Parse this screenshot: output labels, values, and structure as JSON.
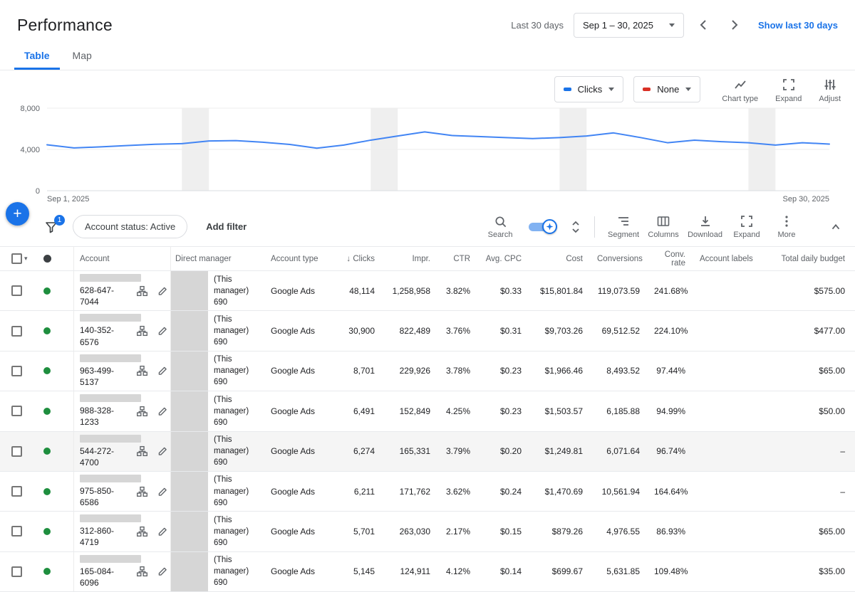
{
  "header": {
    "title": "Performance",
    "date_preset_label": "Last 30 days",
    "date_range": "Sep 1 – 30, 2025",
    "show_link": "Show last 30 days"
  },
  "tabs": [
    {
      "label": "Table"
    },
    {
      "label": "Map"
    }
  ],
  "chart_controls": {
    "metric_primary": {
      "label": "Clicks",
      "color": "#1a73e8"
    },
    "metric_secondary": {
      "label": "None",
      "color": "#d93025"
    },
    "chart_type_label": "Chart type",
    "expand_label": "Expand",
    "adjust_label": "Adjust"
  },
  "chart_data": {
    "type": "line",
    "title": "",
    "x_count": 30,
    "x_labels_visible": [
      "Sep 1, 2025",
      "Sep 30, 2025"
    ],
    "ylim": [
      0,
      8000
    ],
    "yticks": [
      0,
      4000,
      8000
    ],
    "ytick_labels": [
      "0",
      "4,000",
      "8,000"
    ],
    "grid": true,
    "legend": "none",
    "band_color": "#efefef",
    "weekend_bands": [
      [
        6,
        7
      ],
      [
        13,
        14
      ],
      [
        20,
        21
      ],
      [
        27,
        28
      ]
    ],
    "series": [
      {
        "name": "Clicks",
        "color": "#4285f4",
        "values": [
          4450,
          4150,
          4250,
          4380,
          4500,
          4560,
          4820,
          4850,
          4700,
          4480,
          4120,
          4420,
          4900,
          5300,
          5700,
          5350,
          5250,
          5150,
          5050,
          5150,
          5300,
          5600,
          5150,
          4650,
          4900,
          4750,
          4650,
          4420,
          4650,
          4520
        ]
      }
    ]
  },
  "fab": {
    "plus": "+"
  },
  "toolbar": {
    "filter_badge": "1",
    "filter_chip": "Account status: Active",
    "add_filter_label": "Add filter",
    "search_label": "Search",
    "segment_label": "Segment",
    "columns_label": "Columns",
    "download_label": "Download",
    "expand_label": "Expand",
    "more_label": "More"
  },
  "table": {
    "select_caret": "▾",
    "status_active_color": "#1e8e3e",
    "columns": [
      "Account",
      "Direct manager",
      "Account type",
      "Clicks",
      "Impr.",
      "CTR",
      "Avg. CPC",
      "Cost",
      "Conversions",
      "Conv. rate",
      "Account labels",
      "Total daily budget"
    ],
    "sort": {
      "column": "Clicks",
      "direction": "desc",
      "glyph": "↓"
    },
    "rows": [
      {
        "account_id": "628-647-7044",
        "manager_label": "(This manager)",
        "manager_id": "690",
        "account_type": "Google Ads",
        "clicks": "48,114",
        "impr": "1,258,958",
        "ctr": "3.82%",
        "avg_cpc": "$0.33",
        "cost": "$15,801.84",
        "conversions": "119,073.59",
        "conv_rate": "241.68%",
        "labels": "",
        "budget": "$575.00"
      },
      {
        "account_id": "140-352-6576",
        "manager_label": "(This manager)",
        "manager_id": "690",
        "account_type": "Google Ads",
        "clicks": "30,900",
        "impr": "822,489",
        "ctr": "3.76%",
        "avg_cpc": "$0.31",
        "cost": "$9,703.26",
        "conversions": "69,512.52",
        "conv_rate": "224.10%",
        "labels": "",
        "budget": "$477.00"
      },
      {
        "account_id": "963-499-5137",
        "manager_label": "(This manager)",
        "manager_id": "690",
        "account_type": "Google Ads",
        "clicks": "8,701",
        "impr": "229,926",
        "ctr": "3.78%",
        "avg_cpc": "$0.23",
        "cost": "$1,966.46",
        "conversions": "8,493.52",
        "conv_rate": "97.44%",
        "labels": "",
        "budget": "$65.00"
      },
      {
        "account_id": "988-328-1233",
        "manager_label": "(This manager)",
        "manager_id": "690",
        "account_type": "Google Ads",
        "clicks": "6,491",
        "impr": "152,849",
        "ctr": "4.25%",
        "avg_cpc": "$0.23",
        "cost": "$1,503.57",
        "conversions": "6,185.88",
        "conv_rate": "94.99%",
        "labels": "",
        "budget": "$50.00"
      },
      {
        "account_id": "544-272-4700",
        "manager_label": "(This manager)",
        "manager_id": "690",
        "account_type": "Google Ads",
        "clicks": "6,274",
        "impr": "165,331",
        "ctr": "3.79%",
        "avg_cpc": "$0.20",
        "cost": "$1,249.81",
        "conversions": "6,071.64",
        "conv_rate": "96.74%",
        "labels": "",
        "budget": "–",
        "hovered": true
      },
      {
        "account_id": "975-850-6586",
        "manager_label": "(This manager)",
        "manager_id": "690",
        "account_type": "Google Ads",
        "clicks": "6,211",
        "impr": "171,762",
        "ctr": "3.62%",
        "avg_cpc": "$0.24",
        "cost": "$1,470.69",
        "conversions": "10,561.94",
        "conv_rate": "164.64%",
        "labels": "",
        "budget": "–"
      },
      {
        "account_id": "312-860-4719",
        "manager_label": "(This manager)",
        "manager_id": "690",
        "account_type": "Google Ads",
        "clicks": "5,701",
        "impr": "263,030",
        "ctr": "2.17%",
        "avg_cpc": "$0.15",
        "cost": "$879.26",
        "conversions": "4,976.55",
        "conv_rate": "86.93%",
        "labels": "",
        "budget": "$65.00"
      },
      {
        "account_id": "165-084-6096",
        "manager_label": "(This manager)",
        "manager_id": "690",
        "account_type": "Google Ads",
        "clicks": "5,145",
        "impr": "124,911",
        "ctr": "4.12%",
        "avg_cpc": "$0.14",
        "cost": "$699.67",
        "conversions": "5,631.85",
        "conv_rate": "109.48%",
        "labels": "",
        "budget": "$35.00"
      }
    ]
  }
}
